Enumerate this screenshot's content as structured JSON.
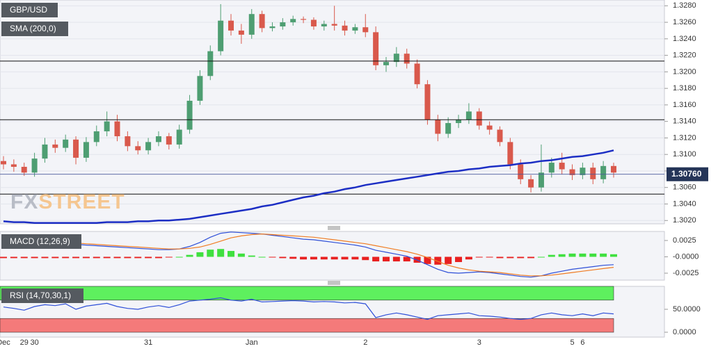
{
  "chart_data": [
    {
      "type": "candlestick",
      "title": "GBP/USD",
      "categories": [
        "Dec",
        null,
        "29",
        "30",
        null,
        null,
        null,
        null,
        null,
        null,
        null,
        null,
        null,
        null,
        "31",
        null,
        null,
        null,
        null,
        null,
        null,
        null,
        null,
        null,
        "Jan",
        null,
        null,
        null,
        null,
        null,
        null,
        null,
        null,
        null,
        null,
        "2",
        null,
        null,
        null,
        null,
        null,
        null,
        null,
        null,
        null,
        null,
        "3",
        null,
        null,
        null,
        null,
        null,
        null,
        null,
        null,
        "5",
        "6",
        null,
        null,
        null
      ],
      "open": [
        1.3092,
        1.3088,
        1.3085,
        1.3078,
        1.3095,
        1.3112,
        1.3108,
        1.3118,
        1.3096,
        1.3115,
        1.3128,
        1.314,
        1.3122,
        1.311,
        1.3105,
        1.3115,
        1.3122,
        1.3112,
        1.313,
        1.3165,
        1.3195,
        1.3225,
        1.3262,
        1.325,
        1.3245,
        1.327,
        1.3253,
        1.3255,
        1.326,
        1.3264,
        1.3263,
        1.3255,
        1.3258,
        1.3256,
        1.325,
        1.3254,
        1.3248,
        1.3208,
        1.3212,
        1.3222,
        1.321,
        1.3185,
        1.3142,
        1.3125,
        1.3138,
        1.3142,
        1.3152,
        1.3135,
        1.313,
        1.3115,
        1.3088,
        1.307,
        1.306,
        1.3078,
        1.309,
        1.3082,
        1.3075,
        1.3084,
        1.307,
        1.3086
      ],
      "high": [
        1.3098,
        1.3094,
        1.309,
        1.3102,
        1.312,
        1.3118,
        1.3124,
        1.3122,
        1.3121,
        1.3135,
        1.3152,
        1.3148,
        1.3128,
        1.3116,
        1.312,
        1.3128,
        1.3126,
        1.3136,
        1.3172,
        1.3202,
        1.3232,
        1.3282,
        1.327,
        1.3258,
        1.3276,
        1.3274,
        1.326,
        1.3265,
        1.3268,
        1.3267,
        1.3266,
        1.3262,
        1.328,
        1.3262,
        1.3258,
        1.327,
        1.3255,
        1.3218,
        1.323,
        1.3228,
        1.3215,
        1.319,
        1.3148,
        1.3145,
        1.3148,
        1.3162,
        1.3156,
        1.314,
        1.3134,
        1.312,
        1.3094,
        1.3075,
        1.3112,
        1.3096,
        1.3102,
        1.3088,
        1.309,
        1.309,
        1.3092,
        1.309
      ],
      "low": [
        1.3082,
        1.3079,
        1.3074,
        1.3073,
        1.309,
        1.3102,
        1.3103,
        1.3088,
        1.3091,
        1.311,
        1.3122,
        1.3116,
        1.3104,
        1.31,
        1.31,
        1.311,
        1.3106,
        1.3107,
        1.3125,
        1.316,
        1.319,
        1.322,
        1.3244,
        1.3234,
        1.324,
        1.3248,
        1.3249,
        1.3251,
        1.3256,
        1.3259,
        1.3251,
        1.325,
        1.325,
        1.3244,
        1.3246,
        1.3242,
        1.3202,
        1.32,
        1.3206,
        1.3204,
        1.318,
        1.3136,
        1.3116,
        1.312,
        1.3132,
        1.3137,
        1.313,
        1.3124,
        1.311,
        1.3082,
        1.3064,
        1.3054,
        1.3055,
        1.3072,
        1.3076,
        1.3069,
        1.307,
        1.3064,
        1.3065,
        1.3072
      ],
      "close": [
        1.3088,
        1.3085,
        1.3078,
        1.3095,
        1.3112,
        1.3108,
        1.3118,
        1.3096,
        1.3115,
        1.3128,
        1.314,
        1.3122,
        1.311,
        1.3105,
        1.3115,
        1.3122,
        1.3112,
        1.313,
        1.3165,
        1.3195,
        1.3225,
        1.3262,
        1.325,
        1.3245,
        1.327,
        1.3253,
        1.3255,
        1.326,
        1.3264,
        1.3263,
        1.3255,
        1.3258,
        1.3256,
        1.325,
        1.3254,
        1.3248,
        1.3208,
        1.3212,
        1.3222,
        1.321,
        1.3185,
        1.3142,
        1.3125,
        1.3138,
        1.3142,
        1.3152,
        1.3135,
        1.313,
        1.3115,
        1.3088,
        1.307,
        1.306,
        1.3078,
        1.309,
        1.3082,
        1.3075,
        1.3084,
        1.307,
        1.3086,
        1.3078
      ],
      "up_color": "#4e9e72",
      "down_color": "#d9594c",
      "ylim": [
        1.3016,
        1.3287
      ],
      "yticks": [
        {
          "value": 1.302,
          "label": "1.3020"
        },
        {
          "value": 1.304,
          "label": "1.3040"
        },
        {
          "value": 1.306,
          "label": "1.3060"
        },
        {
          "value": 1.308,
          "label": "1.3080"
        },
        {
          "value": 1.31,
          "label": "1.3100"
        },
        {
          "value": 1.312,
          "label": "1.3120"
        },
        {
          "value": 1.314,
          "label": "1.3140"
        },
        {
          "value": 1.316,
          "label": "1.3160"
        },
        {
          "value": 1.318,
          "label": "1.3180"
        },
        {
          "value": 1.32,
          "label": "1.3200"
        },
        {
          "value": 1.322,
          "label": "1.3220"
        },
        {
          "value": 1.324,
          "label": "1.3240"
        },
        {
          "value": 1.326,
          "label": "1.3260"
        },
        {
          "value": 1.328,
          "label": "1.3280"
        }
      ],
      "levels": [
        1.3213,
        1.3142,
        1.3052
      ],
      "current_price": {
        "value": 1.3076,
        "label": "1.30760"
      },
      "sma": {
        "name": "SMA (200,0)",
        "color": "#1c2ec4",
        "values": [
          1.3019,
          1.3018,
          1.3018,
          1.3017,
          1.3017,
          1.3017,
          1.3017,
          1.3017,
          1.3017,
          1.3017,
          1.3018,
          1.3018,
          1.3018,
          1.3019,
          1.3019,
          1.302,
          1.302,
          1.3021,
          1.3022,
          1.3024,
          1.3026,
          1.3028,
          1.303,
          1.3032,
          1.3034,
          1.3037,
          1.3039,
          1.3042,
          1.3045,
          1.3048,
          1.305,
          1.3053,
          1.3055,
          1.3058,
          1.306,
          1.3063,
          1.3065,
          1.3067,
          1.3069,
          1.3071,
          1.3073,
          1.3075,
          1.3077,
          1.3079,
          1.308,
          1.3082,
          1.3083,
          1.3085,
          1.3086,
          1.3087,
          1.3089,
          1.309,
          1.3092,
          1.3093,
          1.3095,
          1.3097,
          1.3098,
          1.31,
          1.3102,
          1.3105
        ]
      },
      "watermark": [
        "FX",
        "STREET"
      ],
      "grid": true
    },
    {
      "type": "macd",
      "title": "MACD (12,26,9)",
      "series": [
        {
          "color": "#2e4fd8",
          "values": [
            0.0022,
            0.0022,
            0.0021,
            0.0021,
            0.002,
            0.002,
            0.0019,
            0.0019,
            0.0018,
            0.0017,
            0.0016,
            0.0015,
            0.0014,
            0.0013,
            0.0012,
            0.0011,
            0.0011,
            0.0012,
            0.0016,
            0.0022,
            0.003,
            0.0036,
            0.0038,
            0.0037,
            0.0036,
            0.0035,
            0.0033,
            0.0031,
            0.0029,
            0.0027,
            0.0026,
            0.0024,
            0.0022,
            0.002,
            0.0018,
            0.0015,
            0.001,
            0.0007,
            0.0004,
            0.0001,
            -0.0005,
            -0.0012,
            -0.0019,
            -0.0024,
            -0.0025,
            -0.0024,
            -0.0023,
            -0.0024,
            -0.0026,
            -0.0028,
            -0.003,
            -0.0031,
            -0.0029,
            -0.0025,
            -0.0022,
            -0.0019,
            -0.0017,
            -0.0015,
            -0.0013,
            -0.0012
          ]
        },
        {
          "color": "#f07c22",
          "values": [
            0.0024,
            0.0024,
            0.0023,
            0.0023,
            0.0022,
            0.0022,
            0.0021,
            0.0021,
            0.002,
            0.0019,
            0.0018,
            0.0017,
            0.0016,
            0.0015,
            0.0014,
            0.0013,
            0.0012,
            0.0012,
            0.0013,
            0.0015,
            0.0019,
            0.0024,
            0.0029,
            0.0032,
            0.0034,
            0.0035,
            0.0034,
            0.0033,
            0.0032,
            0.0031,
            0.003,
            0.0028,
            0.0026,
            0.0024,
            0.0022,
            0.002,
            0.0017,
            0.0014,
            0.0011,
            0.0008,
            0.0004,
            -0.0001,
            -0.0007,
            -0.0013,
            -0.0017,
            -0.002,
            -0.0022,
            -0.0023,
            -0.0024,
            -0.0026,
            -0.0028,
            -0.0029,
            -0.0029,
            -0.0028,
            -0.0026,
            -0.0024,
            -0.0022,
            -0.002,
            -0.0018,
            -0.0016
          ]
        }
      ],
      "histogram": [
        -0.0002,
        -0.0002,
        -0.0002,
        -0.0002,
        -0.0002,
        -0.0002,
        -0.0002,
        -0.0002,
        -0.0002,
        -0.0002,
        -0.0002,
        -0.0002,
        -0.0002,
        -0.0002,
        -0.0002,
        -0.0002,
        -0.0001,
        0,
        0.0003,
        0.0007,
        0.0011,
        0.0012,
        0.0009,
        0.0005,
        0.0002,
        0,
        -0.0001,
        -0.0002,
        -0.0003,
        -0.0004,
        -0.0004,
        -0.0004,
        -0.0004,
        -0.0004,
        -0.0004,
        -0.0005,
        -0.0007,
        -0.0007,
        -0.0007,
        -0.0007,
        -0.0009,
        -0.0011,
        -0.0012,
        -0.0011,
        -0.0008,
        -0.0004,
        -0.0001,
        -0.0001,
        -0.0002,
        -0.0002,
        -0.0002,
        -0.0002,
        0,
        0.0003,
        0.0004,
        0.0005,
        0.0005,
        0.0005,
        0.0005,
        0.0004
      ],
      "up_color": "#3fe03f",
      "down_color": "#e82020",
      "ylim": [
        -0.00356,
        0.00388
      ],
      "yticks": [
        0.0025,
        {
          "value": 0,
          "label": "-0.0000"
        },
        -0.0025
      ]
    },
    {
      "type": "rsi",
      "title": "RSI (14,70,30,1)",
      "color": "#2e4fd8",
      "values": [
        55,
        52,
        48,
        56,
        60,
        58,
        62,
        50,
        57,
        60,
        63,
        56,
        52,
        50,
        55,
        58,
        54,
        60,
        68,
        70,
        72,
        75,
        70,
        68,
        72,
        66,
        67,
        68,
        69,
        68,
        66,
        67,
        66,
        64,
        65,
        62,
        32,
        38,
        42,
        38,
        33,
        28,
        36,
        38,
        40,
        42,
        36,
        35,
        33,
        30,
        28,
        30,
        38,
        42,
        38,
        36,
        40,
        36,
        42,
        40
      ],
      "bands": [
        {
          "range": [
            70,
            100
          ],
          "color": "#5ef05e"
        },
        {
          "range": [
            0,
            30
          ],
          "color": "#f47a7a"
        }
      ],
      "ylim": [
        -10.6,
        100
      ],
      "yticks": [
        {
          "value": 50,
          "label": "50.0000"
        },
        {
          "value": 0,
          "label": "0.0000"
        }
      ]
    }
  ]
}
